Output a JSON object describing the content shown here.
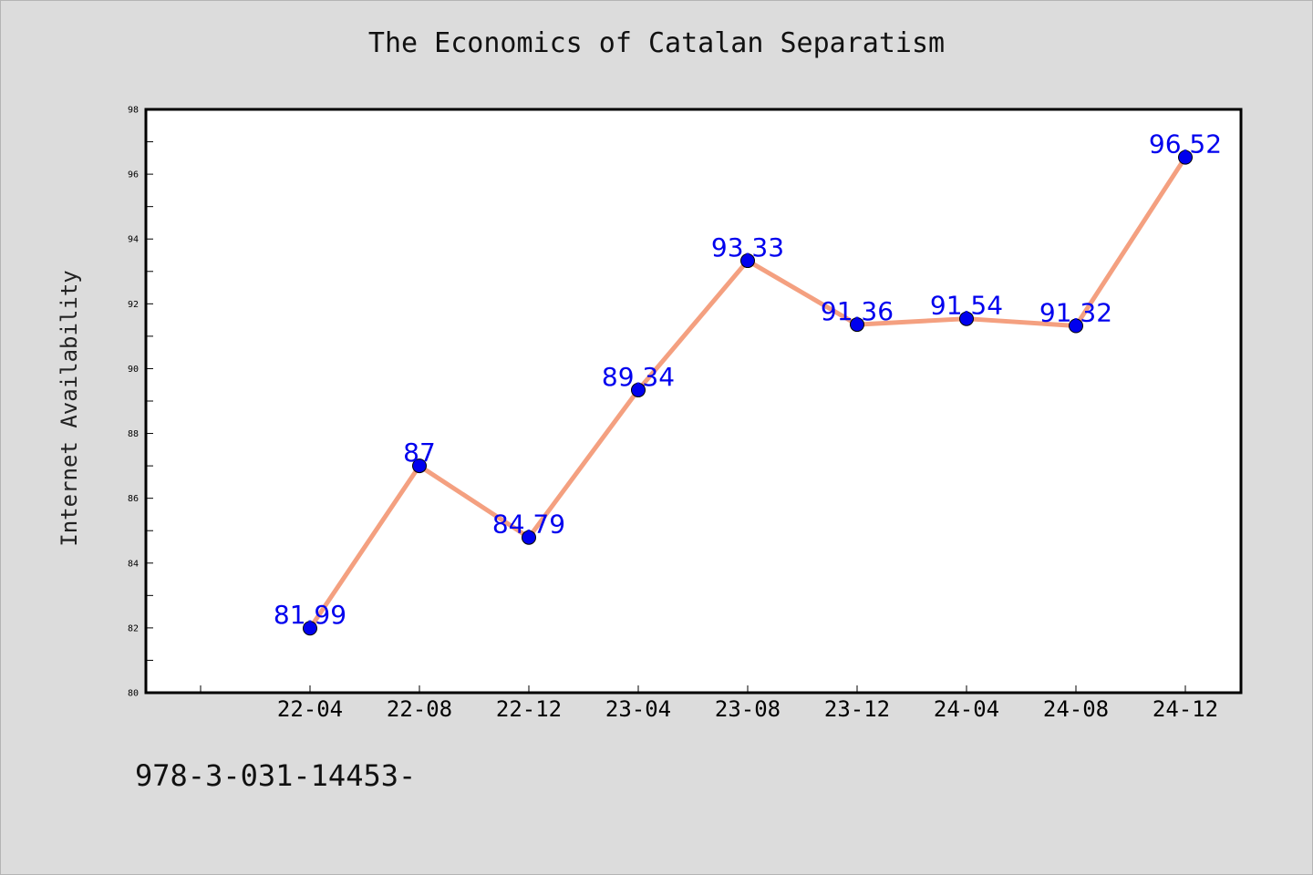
{
  "chart_data": {
    "type": "line",
    "title": "The Economics of Catalan Separatism",
    "ylabel": "Internet Availability",
    "xlabel": "",
    "categories": [
      "22-04",
      "22-08",
      "22-12",
      "23-04",
      "23-08",
      "23-12",
      "24-04",
      "24-08",
      "24-12"
    ],
    "series": [
      {
        "values": [
          81.99,
          87,
          84.79,
          89.34,
          93.33,
          91.36,
          91.54,
          91.32,
          96.52
        ],
        "labels": [
          "81.99",
          "87",
          "84.79",
          "89.34",
          "93.33",
          "91.36",
          "91.54",
          "91.32",
          "96.52"
        ],
        "line_color": "#f4a080",
        "marker_color": "#0000ee",
        "label_color": "#0000ee"
      }
    ],
    "ylim": [
      80,
      98
    ],
    "yticks": [
      "80",
      "82",
      "84",
      "86",
      "88",
      "90",
      "92",
      "94",
      "96",
      "98"
    ],
    "grid": false,
    "legend": "none"
  },
  "footnote": "978-3-031-14453-"
}
